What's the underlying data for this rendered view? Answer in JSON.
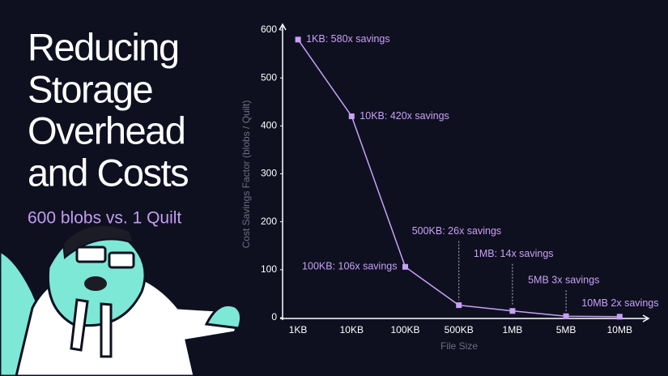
{
  "headline": {
    "title_lines": [
      "Reducing",
      "Storage",
      "Overhead",
      "and Costs"
    ],
    "subtitle": "600 blobs vs. 1 Quilt"
  },
  "chart_data": {
    "type": "line",
    "x_label": "File Size",
    "y_label": "Cost Savings Factor (blobs / Quilt)",
    "categories": [
      "1KB",
      "10KB",
      "100KB",
      "500KB",
      "1MB",
      "5MB",
      "10MB"
    ],
    "values": [
      580,
      420,
      106,
      26,
      14,
      3,
      2
    ],
    "value_labels": [
      "1KB: 580x savings",
      "10KB: 420x savings",
      "100KB:  106x savings",
      "500KB: 26x savings",
      "1MB: 14x savings",
      "5MB 3x savings",
      "10MB 2x savings"
    ],
    "color": "#c9a0f5",
    "ylim": [
      0,
      600
    ],
    "yticks": [
      0,
      100,
      200,
      300,
      400,
      500,
      600
    ],
    "grid": false
  }
}
